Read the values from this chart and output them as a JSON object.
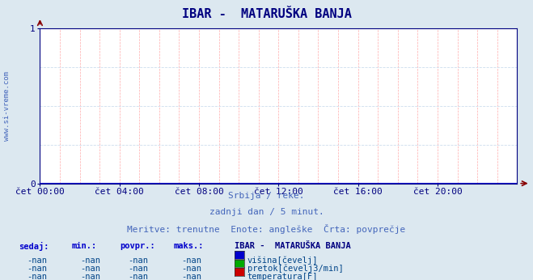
{
  "title": "IBAR -  MATARUŠKA BANJA",
  "title_fontsize": 11,
  "title_color": "#000080",
  "background_color": "#dce8f0",
  "plot_bg_color": "#ffffff",
  "grid_color": "#ffaaaa",
  "axis_color": "#000080",
  "ylim": [
    0,
    1
  ],
  "yticks": [
    0,
    1
  ],
  "xlim": [
    0,
    288
  ],
  "xtick_labels": [
    "čet 00:00",
    "čet 04:00",
    "čet 08:00",
    "čet 12:00",
    "čet 16:00",
    "čet 20:00"
  ],
  "xtick_positions": [
    0,
    48,
    96,
    144,
    192,
    240
  ],
  "watermark": "www.si-vreme.com",
  "subtitle_lines": [
    "Srbija / reke.",
    "zadnji dan / 5 minut.",
    "Meritve: trenutne  Enote: angleške  Črta: povprečje"
  ],
  "subtitle_color": "#4466bb",
  "subtitle_fontsize": 8,
  "legend_title": "IBAR -  MATARUŠKA BANJA",
  "legend_title_color": "#000080",
  "legend_items": [
    {
      "label": "višina[čevelj]",
      "color": "#0000cc"
    },
    {
      "label": "pretok[čevelj3/min]",
      "color": "#00aa00"
    },
    {
      "label": "temperatura[F]",
      "color": "#cc0000"
    }
  ],
  "table_headers": [
    "sedaj:",
    "min.:",
    "povpr.:",
    "maks.:"
  ],
  "table_values": [
    "-nan",
    "-nan",
    "-nan",
    "-nan"
  ],
  "table_header_color": "#0000cc",
  "table_value_color": "#004488",
  "zero_line_color": "#0000cc",
  "arrow_color": "#880000",
  "tick_fontsize": 8,
  "tick_color": "#000080",
  "hgrid_color": "#ccddee",
  "vgrid_color": "#ffaaaa"
}
